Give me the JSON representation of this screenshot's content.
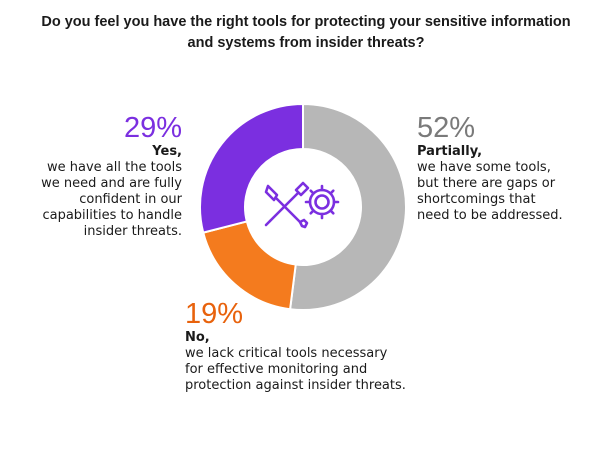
{
  "title": {
    "line1": "Do you feel you have the right tools for protecting your sensitive information",
    "line2": "and systems from insider threats?"
  },
  "chart_data": {
    "type": "pie",
    "style": "donut",
    "title": "Do you feel you have the right tools for protecting your sensitive information and systems from insider threats?",
    "slices": [
      {
        "label": "Partially,",
        "value": 52,
        "color": "#b7b7b7"
      },
      {
        "label": "No,",
        "value": 19,
        "color": "#f47b1e"
      },
      {
        "label": "Yes,",
        "value": 29,
        "color": "#7b2fe0"
      }
    ]
  },
  "callouts": {
    "yes": {
      "pct": "29%",
      "pct_color": "#7b2fe0",
      "label": "Yes,",
      "desc": "we have all the tools\nwe need and are fully\nconfident in our\ncapabilities to handle\ninsider threats."
    },
    "partially": {
      "pct": "52%",
      "pct_color": "#7a7a7a",
      "label": "Partially,",
      "desc": "we have some tools,\nbut there are gaps or\nshortcomings that\nneed to be addressed."
    },
    "no": {
      "pct": "19%",
      "pct_color": "#e8620c",
      "label": "No,",
      "desc": "we lack critical tools necessary\nfor effective monitoring and\nprotection against insider threats."
    }
  },
  "center_icon": {
    "name": "tools-gear-icon",
    "color": "#7b2fe0"
  }
}
